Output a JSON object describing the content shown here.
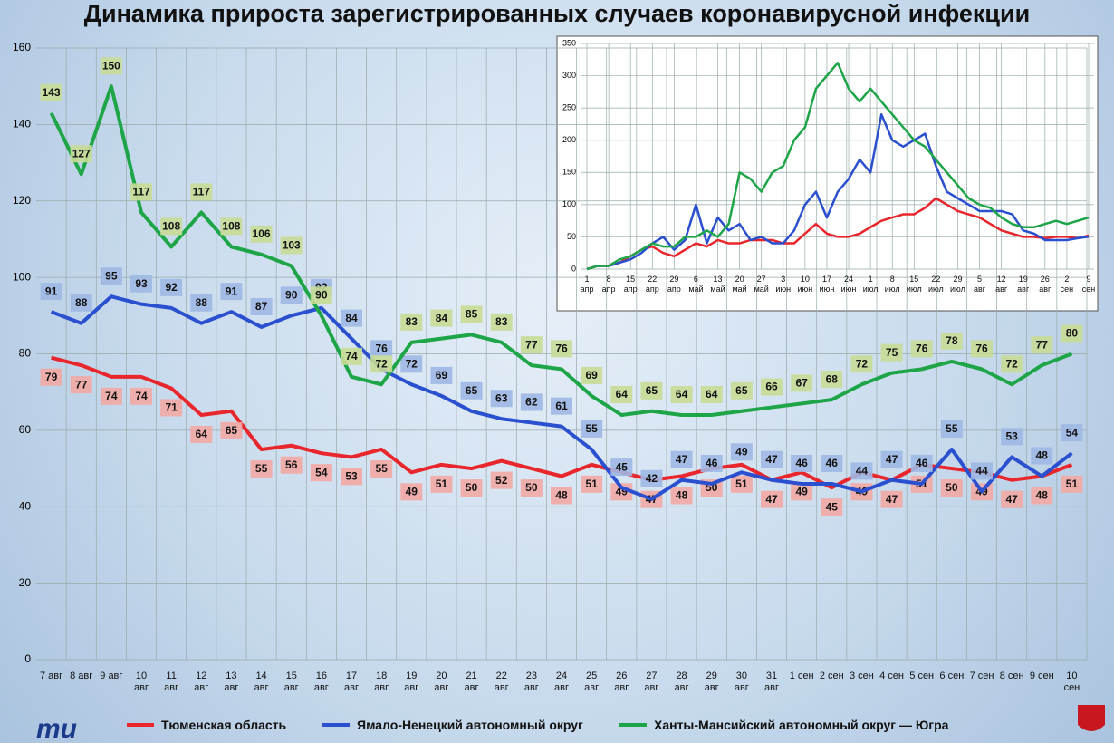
{
  "chart_data": [
    {
      "type": "line",
      "title": "Динамика прироста зарегистрированных случаев коронавирусной инфекции",
      "categories": [
        "7 авг",
        "8 авг",
        "9 авг",
        "10\nавг",
        "11\nавг",
        "12\nавг",
        "13\nавг",
        "14\nавг",
        "15\nавг",
        "16\nавг",
        "17\nавг",
        "18\nавг",
        "19\nавг",
        "20\nавг",
        "21\nавг",
        "22\nавг",
        "23\nавг",
        "24\nавг",
        "25\nавг",
        "26\nавг",
        "27\nавг",
        "28\nавг",
        "29\nавг",
        "30\nавг",
        "31\nавг",
        "1 сен",
        "2 сен",
        "3 сен",
        "4 сен",
        "5 сен",
        "6 сен",
        "7 сен",
        "8 сен",
        "9 сен",
        "10\nсен"
      ],
      "series": [
        {
          "name": "Тюменская область",
          "color": "#e8262b",
          "values": [
            79,
            77,
            74,
            74,
            71,
            64,
            65,
            55,
            56,
            54,
            53,
            55,
            49,
            51,
            50,
            52,
            50,
            48,
            51,
            49,
            47,
            48,
            50,
            51,
            47,
            49,
            45,
            49,
            47,
            51,
            50,
            49,
            47,
            48,
            51
          ]
        },
        {
          "name": "Ямало-Ненецкий автономный округ",
          "color": "#2a4fcf",
          "values": [
            91,
            88,
            95,
            93,
            92,
            88,
            91,
            87,
            90,
            92,
            84,
            76,
            72,
            69,
            65,
            63,
            62,
            61,
            55,
            45,
            42,
            47,
            46,
            49,
            47,
            46,
            46,
            44,
            47,
            46,
            55,
            44,
            53,
            48,
            54
          ]
        },
        {
          "name": "Ханты-Мансийский автономный округ — Югра",
          "color": "#1ea548",
          "values": [
            143,
            127,
            150,
            117,
            108,
            117,
            108,
            106,
            103,
            90,
            74,
            72,
            83,
            84,
            85,
            83,
            77,
            76,
            69,
            64,
            65,
            64,
            64,
            65,
            66,
            67,
            68,
            72,
            75,
            76,
            78,
            76,
            72,
            77,
            80
          ]
        }
      ],
      "ylim": [
        0,
        160
      ],
      "yticks": [
        0,
        20,
        40,
        60,
        80,
        100,
        120,
        140,
        160
      ],
      "grid": true,
      "legend": "bottom"
    },
    {
      "type": "line",
      "categories": [
        "1\nапр",
        null,
        "8\nапр",
        null,
        "15\nапр",
        null,
        "22\nапр",
        null,
        "29\nапр",
        null,
        "6\nмай",
        null,
        "13\nмай",
        null,
        "20\nмай",
        null,
        "27\nмай",
        null,
        "3\nиюн",
        null,
        "10\nиюн",
        null,
        "17\nиюн",
        null,
        "24\nиюн",
        null,
        "1\nиюл",
        null,
        "8\nиюл",
        null,
        "15\nиюл",
        null,
        "22\nиюл",
        null,
        "29\nиюл",
        null,
        "5\nавг",
        null,
        "12\nавг",
        null,
        "19\nавг",
        null,
        "26\nавг",
        null,
        "2\nсен",
        null,
        "9\nсен"
      ],
      "series": [
        {
          "color": "#e8262b",
          "values": [
            0,
            5,
            5,
            10,
            20,
            30,
            35,
            25,
            20,
            30,
            40,
            35,
            45,
            40,
            40,
            45,
            45,
            45,
            40,
            40,
            55,
            70,
            55,
            50,
            50,
            55,
            65,
            75,
            80,
            85,
            85,
            95,
            110,
            100,
            90,
            85,
            80,
            70,
            60,
            55,
            50,
            50,
            48,
            50,
            50,
            48,
            52
          ]
        },
        {
          "color": "#2a4fcf",
          "values": [
            0,
            5,
            5,
            10,
            15,
            25,
            40,
            50,
            30,
            45,
            100,
            40,
            80,
            60,
            70,
            45,
            50,
            40,
            40,
            60,
            100,
            120,
            80,
            120,
            140,
            170,
            150,
            240,
            200,
            190,
            200,
            210,
            160,
            120,
            110,
            100,
            90,
            90,
            90,
            85,
            60,
            55,
            45,
            45,
            45,
            48,
            50
          ]
        },
        {
          "color": "#1ea548",
          "values": [
            0,
            5,
            5,
            15,
            20,
            30,
            40,
            35,
            35,
            50,
            50,
            60,
            50,
            70,
            150,
            140,
            120,
            150,
            160,
            200,
            220,
            280,
            300,
            320,
            280,
            260,
            280,
            260,
            240,
            220,
            200,
            190,
            170,
            150,
            130,
            110,
            100,
            95,
            80,
            70,
            65,
            65,
            70,
            75,
            70,
            75,
            80
          ]
        }
      ],
      "ylim": [
        0,
        350
      ],
      "yticks": [
        0,
        50,
        100,
        150,
        200,
        250,
        300,
        350
      ],
      "grid": true
    }
  ]
}
